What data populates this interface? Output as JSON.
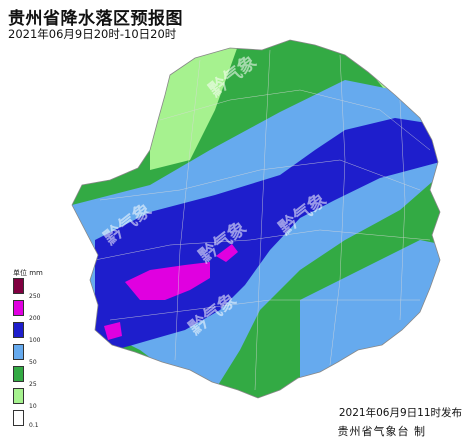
{
  "map": {
    "title": "贵州省降水落区预报图",
    "period": "2021年06月9日20时-10日20时",
    "issue_time": "2021年06月9日11时发布",
    "issuer": "贵州省气象台 制"
  },
  "legend": {
    "title": "单位 mm",
    "levels": [
      {
        "label": "250",
        "color": "#800040"
      },
      {
        "label": "200",
        "color": "#e000e0"
      },
      {
        "label": "100",
        "color": "#1e1ecc"
      },
      {
        "label": "50",
        "color": "#66aaee"
      },
      {
        "label": "25",
        "color": "#33aa44"
      },
      {
        "label": "10",
        "color": "#a6f28f"
      },
      {
        "label": "0.1",
        "color": "#ffffff"
      }
    ]
  },
  "rainfall_colors": {
    "light_rain": "#a6f28f",
    "moderate_rain": "#33aa44",
    "heavy_rain": "#66aaee",
    "rainstorm": "#1e1ecc",
    "heavy_rainstorm": "#e000e0"
  },
  "watermark": "黔气象"
}
